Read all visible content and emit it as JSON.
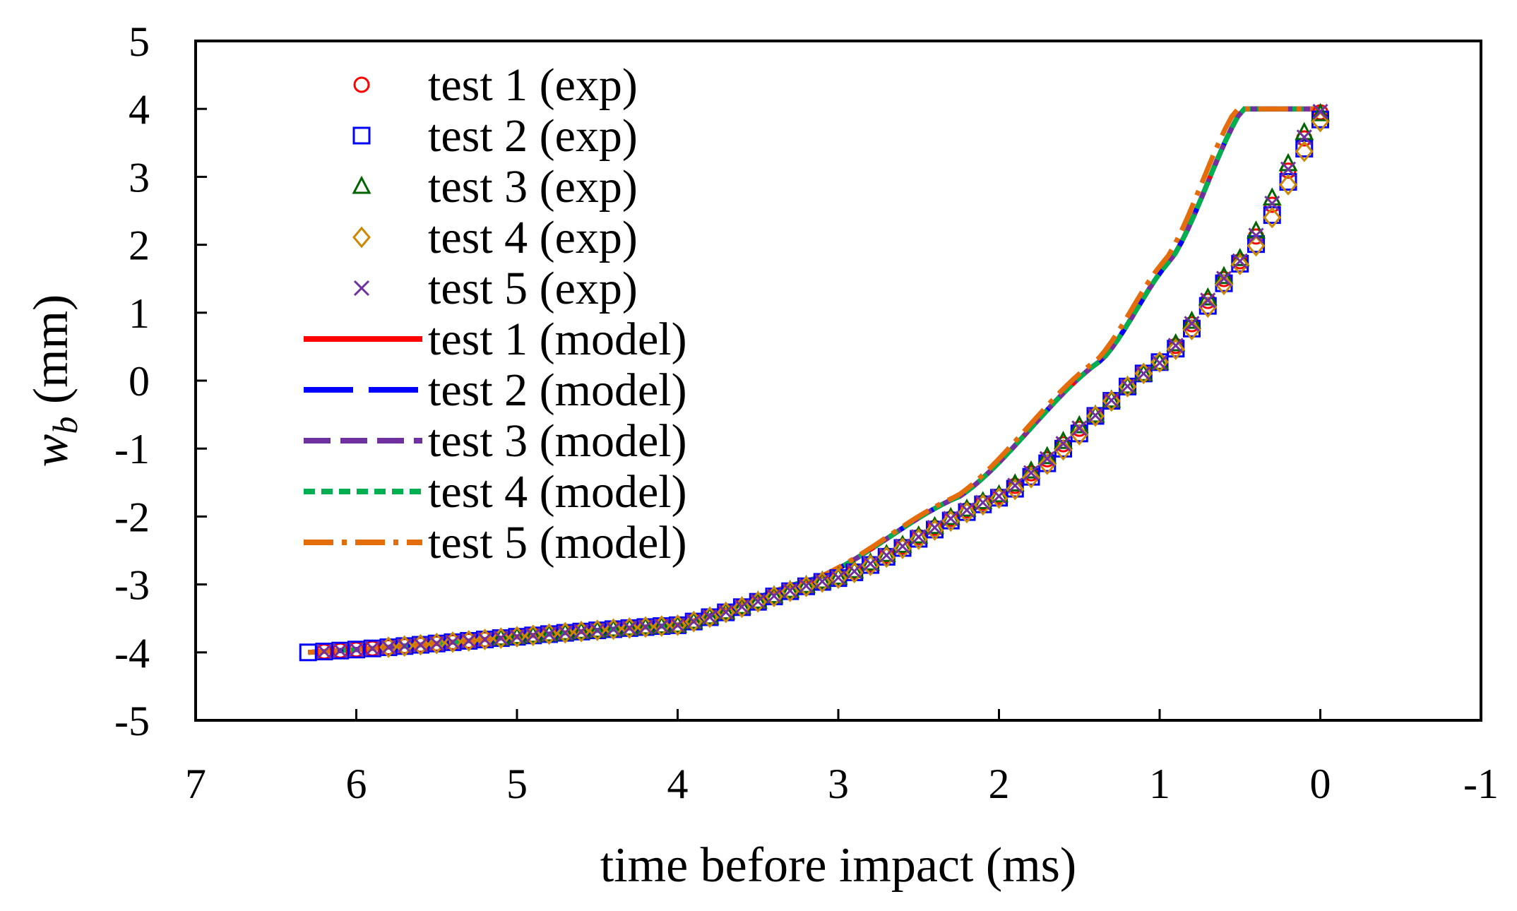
{
  "chart_data": {
    "type": "scatter",
    "xlabel": "time before impact (ms)",
    "ylabel_base": "w",
    "ylabel_sub": "b",
    "ylabel_unit": " (mm)",
    "xlim": [
      7,
      -1
    ],
    "ylim": [
      -5,
      5
    ],
    "xticks": [
      7,
      6,
      5,
      4,
      3,
      2,
      1,
      0,
      -1
    ],
    "yticks": [
      5,
      4,
      3,
      2,
      1,
      0,
      -1,
      -2,
      -3,
      -4,
      -5
    ],
    "grid": false,
    "legend_position": "top-left",
    "exp_series": [
      {
        "name": "test 1 (exp)",
        "color": "#ff0000",
        "marker": "circle",
        "t0": 6.2,
        "dt": 0.1,
        "offset": 0.02
      },
      {
        "name": "test 2 (exp)",
        "color": "#0000ff",
        "marker": "square",
        "t0": 6.3,
        "dt": 0.1,
        "offset": 0.18
      },
      {
        "name": "test 3 (exp)",
        "color": "#006400",
        "marker": "triangle",
        "t0": 5.1,
        "dt": 0.1,
        "offset": -0.08
      },
      {
        "name": "test 4 (exp)",
        "color": "#cc8800",
        "marker": "diamond",
        "t0": 5.8,
        "dt": 0.1,
        "offset": 0.22
      },
      {
        "name": "test 5 (exp)",
        "color": "#7030a0",
        "marker": "cross",
        "t0": 6.2,
        "dt": 0.1,
        "offset": 0.0
      }
    ],
    "model_series": [
      {
        "name": "test 1 (model)",
        "color": "#ff0000",
        "dash": "none",
        "t0": 3.6,
        "offset": 0.55
      },
      {
        "name": "test 2 (model)",
        "color": "#0000ff",
        "dash": "70 22",
        "t0": 3.6,
        "offset": 0.55
      },
      {
        "name": "test 3 (model)",
        "color": "#7030a0",
        "dash": "38 14",
        "t0": 3.6,
        "offset": 0.55
      },
      {
        "name": "test 4 (model)",
        "color": "#00b050",
        "dash": "16 9",
        "t0": 3.6,
        "offset": 0.55
      },
      {
        "name": "test 5 (model)",
        "color": "#e46c0a",
        "dash": "42 12 7 12",
        "t0": 5.8,
        "offset": 0.6
      }
    ],
    "curve_reference": [
      {
        "t": 6.3,
        "w": -4.0
      },
      {
        "t": 4.0,
        "w": -3.6
      },
      {
        "t": 3.0,
        "w": -2.9
      },
      {
        "t": 2.0,
        "w": -1.7
      },
      {
        "t": 1.0,
        "w": 0.3
      },
      {
        "t": 0.5,
        "w": 1.8
      },
      {
        "t": 0.0,
        "w": 4.0
      }
    ]
  }
}
